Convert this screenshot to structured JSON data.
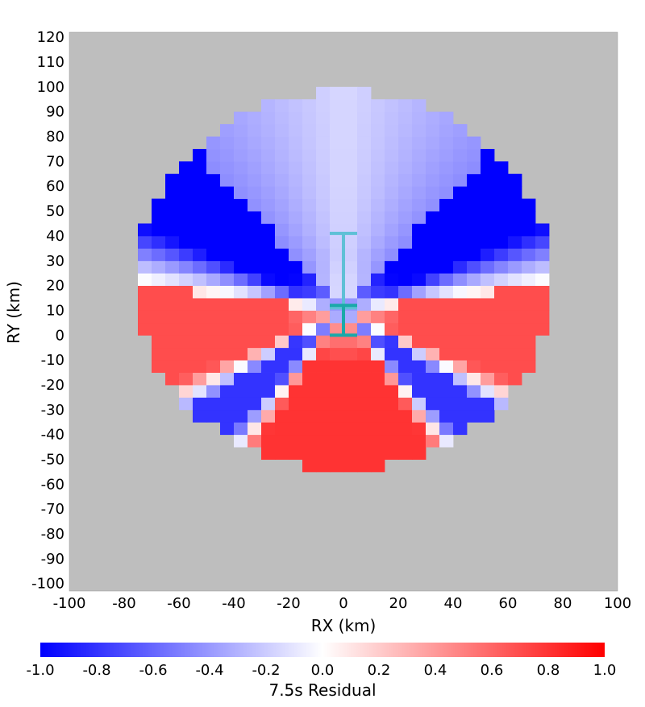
{
  "chart_data": {
    "type": "heatmap",
    "title": "",
    "xlabel": "RX (km)",
    "ylabel": "RY (km)",
    "xlim": [
      -100,
      100
    ],
    "ylim": [
      -103,
      122
    ],
    "x_ticks": [
      -100,
      -80,
      -60,
      -40,
      -20,
      0,
      20,
      40,
      60,
      80,
      100
    ],
    "y_ticks": [
      120,
      110,
      100,
      90,
      80,
      70,
      60,
      50,
      40,
      30,
      20,
      10,
      0,
      -10,
      -20,
      -30,
      -40,
      -50,
      -60,
      -70,
      -80,
      -90,
      -100
    ],
    "cell_size_km": 5,
    "domain_shape": "circle, radius ~75 km, center (0, 22)",
    "background_color": "#bebebe",
    "colorbar": {
      "label": "7.5s Residual",
      "min": -1.0,
      "max": 1.0,
      "ticks": [
        "-1.0",
        "-0.8",
        "-0.6",
        "-0.4",
        "-0.2",
        "0.0",
        "0.2",
        "0.4",
        "0.6",
        "0.8",
        "1.0"
      ],
      "colors": {
        "negative": "#0000ff",
        "zero": "#ffffff",
        "positive": "#ff0000"
      }
    },
    "pattern": "radiation-pattern residual: strong negative lobes at upper-left/right (~ -1.0), positive band around RY 0-25 (~ +0.7) and lower lobe (~ +0.8), negative lobes lower-left/right (~ -0.8)",
    "fault_trace": {
      "segments": [
        {
          "name": "upper",
          "x": [
            0,
            0
          ],
          "y": [
            41,
            11
          ],
          "color": "#5fc0d6"
        },
        {
          "name": "lower",
          "x": [
            0,
            0
          ],
          "y": [
            12,
            0
          ],
          "color": "#1aa9a9"
        }
      ]
    }
  }
}
